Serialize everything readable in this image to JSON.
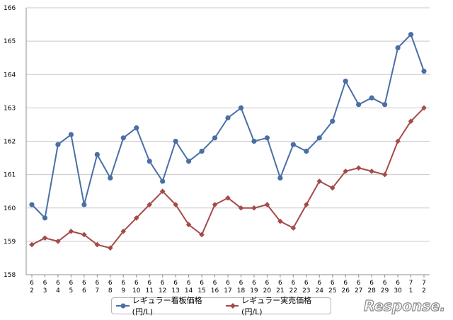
{
  "chart_data": {
    "type": "line",
    "categories": [
      [
        "6",
        "2"
      ],
      [
        "6",
        "3"
      ],
      [
        "6",
        "4"
      ],
      [
        "6",
        "5"
      ],
      [
        "6",
        "6"
      ],
      [
        "6",
        "7"
      ],
      [
        "6",
        "8"
      ],
      [
        "6",
        "9"
      ],
      [
        "6",
        "10"
      ],
      [
        "6",
        "11"
      ],
      [
        "6",
        "12"
      ],
      [
        "6",
        "13"
      ],
      [
        "6",
        "14"
      ],
      [
        "6",
        "15"
      ],
      [
        "6",
        "16"
      ],
      [
        "6",
        "17"
      ],
      [
        "6",
        "18"
      ],
      [
        "6",
        "19"
      ],
      [
        "6",
        "20"
      ],
      [
        "6",
        "21"
      ],
      [
        "6",
        "22"
      ],
      [
        "6",
        "23"
      ],
      [
        "6",
        "24"
      ],
      [
        "6",
        "25"
      ],
      [
        "6",
        "26"
      ],
      [
        "6",
        "27"
      ],
      [
        "6",
        "28"
      ],
      [
        "6",
        "29"
      ],
      [
        "6",
        "30"
      ],
      [
        "7",
        "1"
      ],
      [
        "7",
        "2"
      ]
    ],
    "ylim": [
      158,
      166
    ],
    "yticks": [
      "158",
      "159",
      "160",
      "161",
      "162",
      "163",
      "164",
      "165",
      "166"
    ],
    "grid": true,
    "series": [
      {
        "name": "レギュラー看板価格(円/L)",
        "color": "#4a6fa5",
        "marker": "circle",
        "values": [
          160.1,
          159.7,
          161.9,
          162.2,
          160.1,
          161.6,
          160.9,
          162.1,
          162.4,
          161.4,
          160.8,
          162.0,
          161.4,
          161.7,
          162.1,
          162.7,
          163.0,
          162.0,
          162.1,
          160.9,
          161.9,
          161.7,
          162.1,
          162.6,
          163.8,
          163.1,
          163.3,
          163.1,
          164.8,
          165.2,
          164.1
        ]
      },
      {
        "name": "レギュラー実売価格(円/L)",
        "color": "#a54a48",
        "marker": "diamond",
        "values": [
          158.9,
          159.1,
          159.0,
          159.3,
          159.2,
          158.9,
          158.8,
          159.3,
          159.7,
          160.1,
          160.5,
          160.1,
          159.5,
          159.2,
          160.1,
          160.3,
          160.0,
          160.0,
          160.1,
          159.6,
          159.4,
          160.1,
          160.8,
          160.6,
          161.1,
          161.2,
          161.1,
          161.0,
          162.0,
          162.6,
          163.0
        ]
      }
    ],
    "legend_position": "bottom-center"
  },
  "watermark": {
    "text": "Response."
  }
}
